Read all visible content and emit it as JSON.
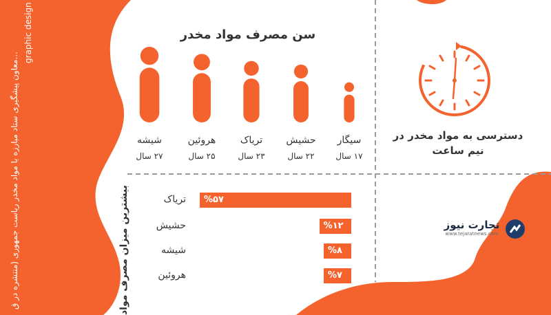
{
  "side_text": {
    "line1": "graphic design",
    "line2": "...معاون پیشگیری ستاد مبارزه با مواد مخدر ریاست جمهوری (منتشره در ق"
  },
  "clock_section": {
    "title": "دسترسی به مواد مخدر در نیم ساعت"
  },
  "brand": {
    "name": "تجارت نیوز",
    "url": "www.tejaratnews.com"
  },
  "colors": {
    "accent": "#f4632e",
    "text": "#333333",
    "divider": "#9a9a9a"
  },
  "chart_data": [
    {
      "type": "bar",
      "title": "سن مصرف مواد مخدر",
      "categories": [
        "سیگار",
        "حشیش",
        "تریاک",
        "هروئین",
        "شیشه"
      ],
      "values": [
        17,
        22,
        23,
        25,
        27
      ],
      "value_labels": [
        "۱۷ سال",
        "۲۲ سال",
        "۲۳ سال",
        "۲۵ سال",
        "۲۷ سال"
      ]
    },
    {
      "type": "bar",
      "orientation": "horizontal",
      "title": "بیشترین میزان مصرف مواد",
      "categories": [
        "تریاک",
        "حشیش",
        "شیشه",
        "هروئین"
      ],
      "values": [
        57,
        12,
        8,
        7
      ],
      "value_labels": [
        "%۵۷",
        "%۱۲",
        "%۸",
        "%۷"
      ]
    }
  ]
}
